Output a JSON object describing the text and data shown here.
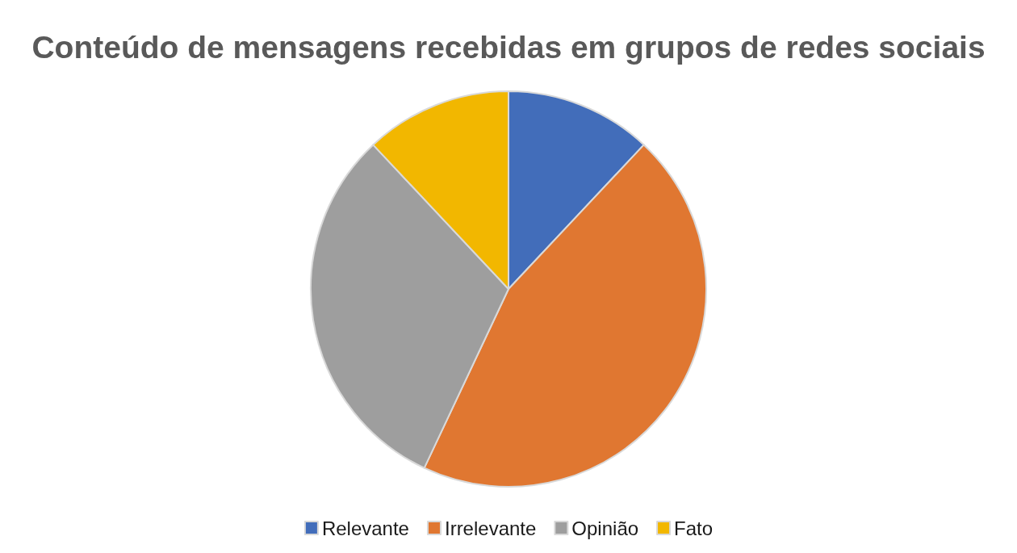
{
  "chart_data": {
    "type": "pie",
    "title": "Conteúdo de mensagens recebidas em grupos de redes sociais",
    "categories": [
      "Relevante",
      "Irrelevante",
      "Opinião",
      "Fato"
    ],
    "values": [
      12,
      45,
      31,
      12
    ],
    "colors": [
      "#426dba",
      "#e07731",
      "#9e9e9e",
      "#f2b700"
    ],
    "legend": "bottom"
  }
}
